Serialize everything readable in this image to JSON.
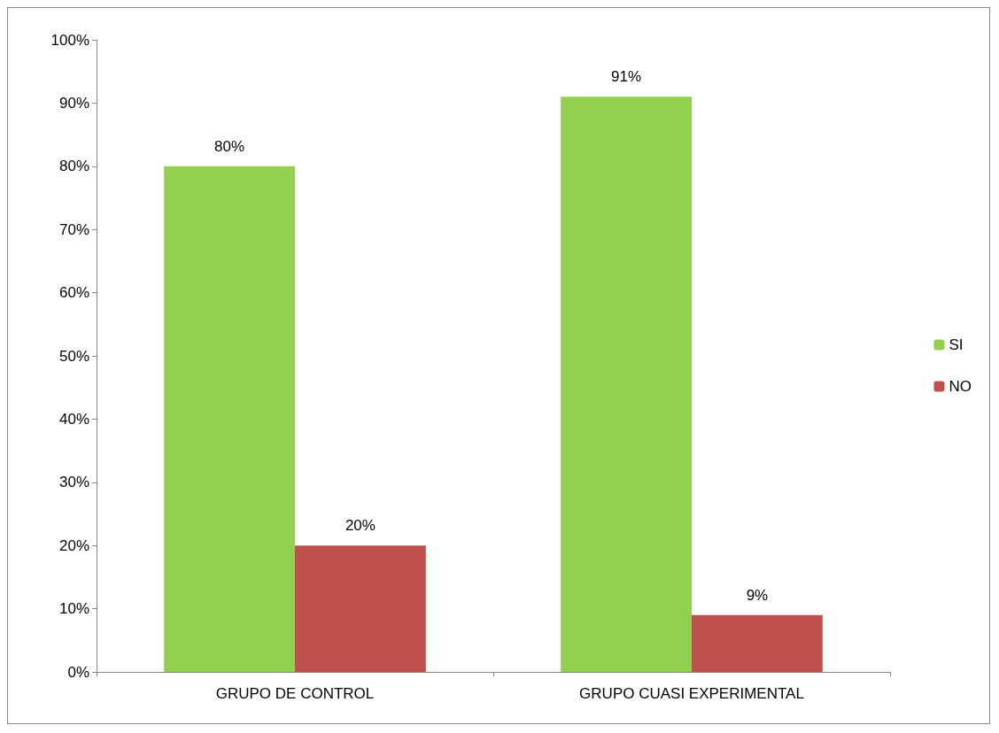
{
  "chart_data": {
    "type": "bar",
    "categories": [
      "GRUPO DE CONTROL",
      "GRUPO CUASI EXPERIMENTAL"
    ],
    "series": [
      {
        "name": "SI",
        "color": "#92d050",
        "values": [
          80,
          91
        ],
        "value_labels": [
          "80%",
          "91%"
        ]
      },
      {
        "name": "NO",
        "color": "#c0504d",
        "values": [
          20,
          9
        ],
        "value_labels": [
          "20%",
          "9%"
        ]
      }
    ],
    "ylim": [
      0,
      100
    ],
    "yticks": [
      {
        "value": 0,
        "label": "0%"
      },
      {
        "value": 10,
        "label": "10%"
      },
      {
        "value": 20,
        "label": "20%"
      },
      {
        "value": 30,
        "label": "30%"
      },
      {
        "value": 40,
        "label": "40%"
      },
      {
        "value": 50,
        "label": "50%"
      },
      {
        "value": 60,
        "label": "60%"
      },
      {
        "value": 70,
        "label": "70%"
      },
      {
        "value": 80,
        "label": "80%"
      },
      {
        "value": 90,
        "label": "90%"
      },
      {
        "value": 100,
        "label": "100%"
      }
    ],
    "grid": false,
    "legend": "right"
  }
}
